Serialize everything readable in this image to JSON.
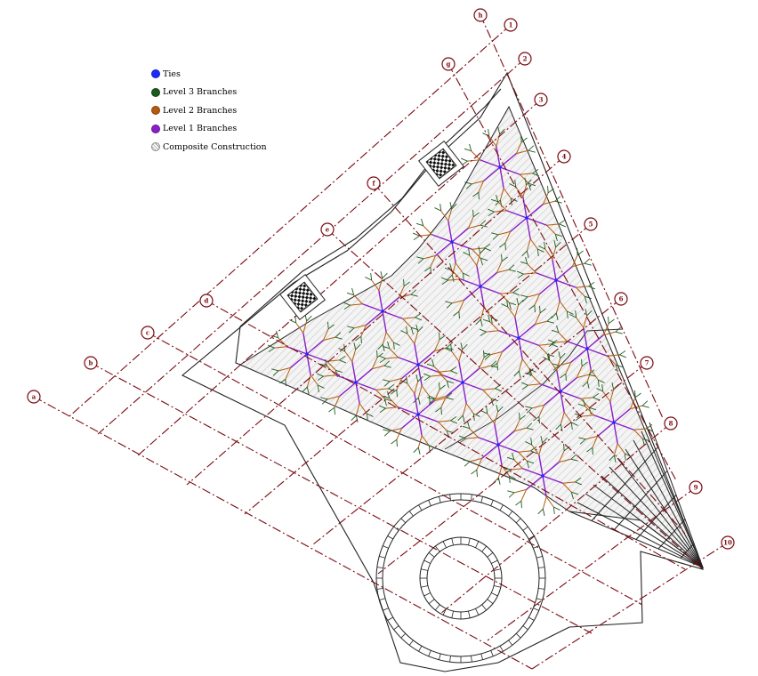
{
  "legend": {
    "items": [
      {
        "label": "Ties",
        "color": "#1a2cff"
      },
      {
        "label": "Level 3 Branches",
        "color": "#1e5a1e"
      },
      {
        "label": "Level 2 Branches",
        "color": "#b35a0c"
      },
      {
        "label": "Level 1 Branches",
        "color": "#8a1ec8"
      },
      {
        "label": "Composite Construction",
        "color": "#bdbdbd",
        "pattern": "hatched"
      }
    ]
  },
  "gridlines": {
    "numbered": [
      "1",
      "2",
      "3",
      "4",
      "5",
      "6",
      "7",
      "8",
      "9",
      "10"
    ],
    "lettered": [
      "a",
      "b",
      "c",
      "d",
      "e",
      "f",
      "g",
      "h"
    ]
  },
  "colors": {
    "gridline": "#7a0a12",
    "outline": "#222222",
    "canopy_fill": "#e6e6e6"
  }
}
